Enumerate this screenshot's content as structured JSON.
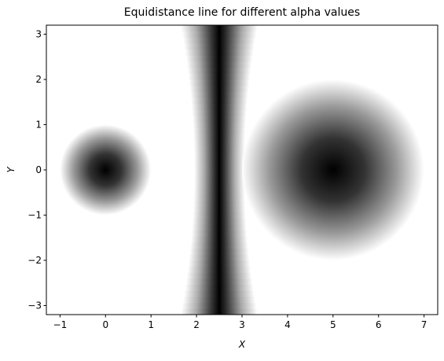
{
  "chart_data": {
    "type": "density-shapes",
    "title": "Equidistance line for different alpha values",
    "x_label": "X",
    "y_label": "Y",
    "xlim": [
      -1.3,
      7.3
    ],
    "ylim": [
      -3.2,
      3.2
    ],
    "xticks": [
      {
        "value": -1,
        "label": "−1"
      },
      0,
      1,
      2,
      3,
      4,
      5,
      6,
      7
    ],
    "yticks": [
      {
        "value": -3,
        "label": "−3"
      },
      {
        "value": -2,
        "label": "−2"
      },
      {
        "value": -1,
        "label": "−1"
      },
      0,
      1,
      2,
      3
    ],
    "color": "#000000",
    "circles": [
      {
        "x": 0,
        "y": 0,
        "r": 1
      },
      {
        "x": 5,
        "y": 0,
        "r": 2
      }
    ],
    "band": {
      "x": 2.5,
      "half_width_center": 0.55,
      "half_width_edge": 0.85
    }
  }
}
